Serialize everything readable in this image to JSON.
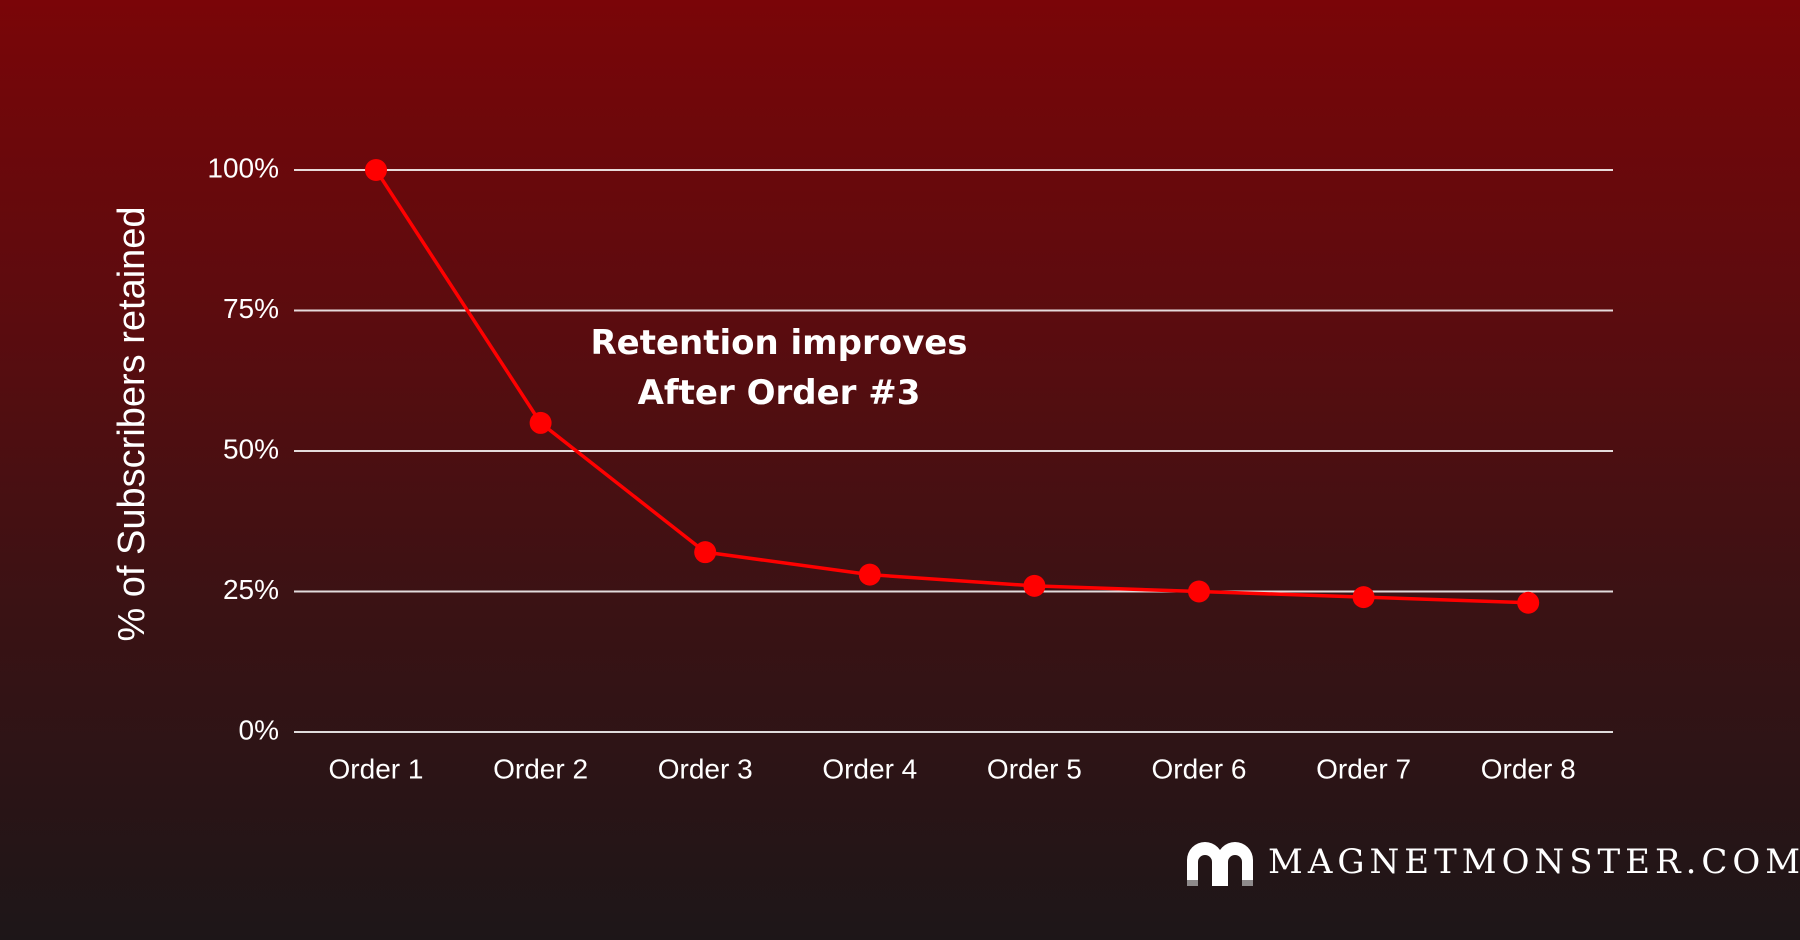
{
  "chart_data": {
    "type": "line",
    "categories": [
      "Order 1",
      "Order 2",
      "Order 3",
      "Order 4",
      "Order 5",
      "Order 6",
      "Order 7",
      "Order 8"
    ],
    "series": [
      {
        "values": [
          100,
          55,
          32,
          28,
          26,
          25,
          24,
          23
        ]
      }
    ],
    "ylabel": "% of Subscribers retained",
    "ylim": [
      0,
      100
    ],
    "yticks": [
      0,
      25,
      50,
      75,
      100
    ],
    "ytick_labels": [
      "0%",
      "25%",
      "50%",
      "75%",
      "100%"
    ],
    "annotation": [
      "Retention improves",
      "After Order #3"
    ],
    "grid": true,
    "colors": {
      "line": "#ff0000",
      "grid": "#ffffff",
      "text": "#ffffff"
    }
  },
  "brand": {
    "text": "MAGNETMONSTER.COM",
    "icon": "magnet-icon"
  }
}
